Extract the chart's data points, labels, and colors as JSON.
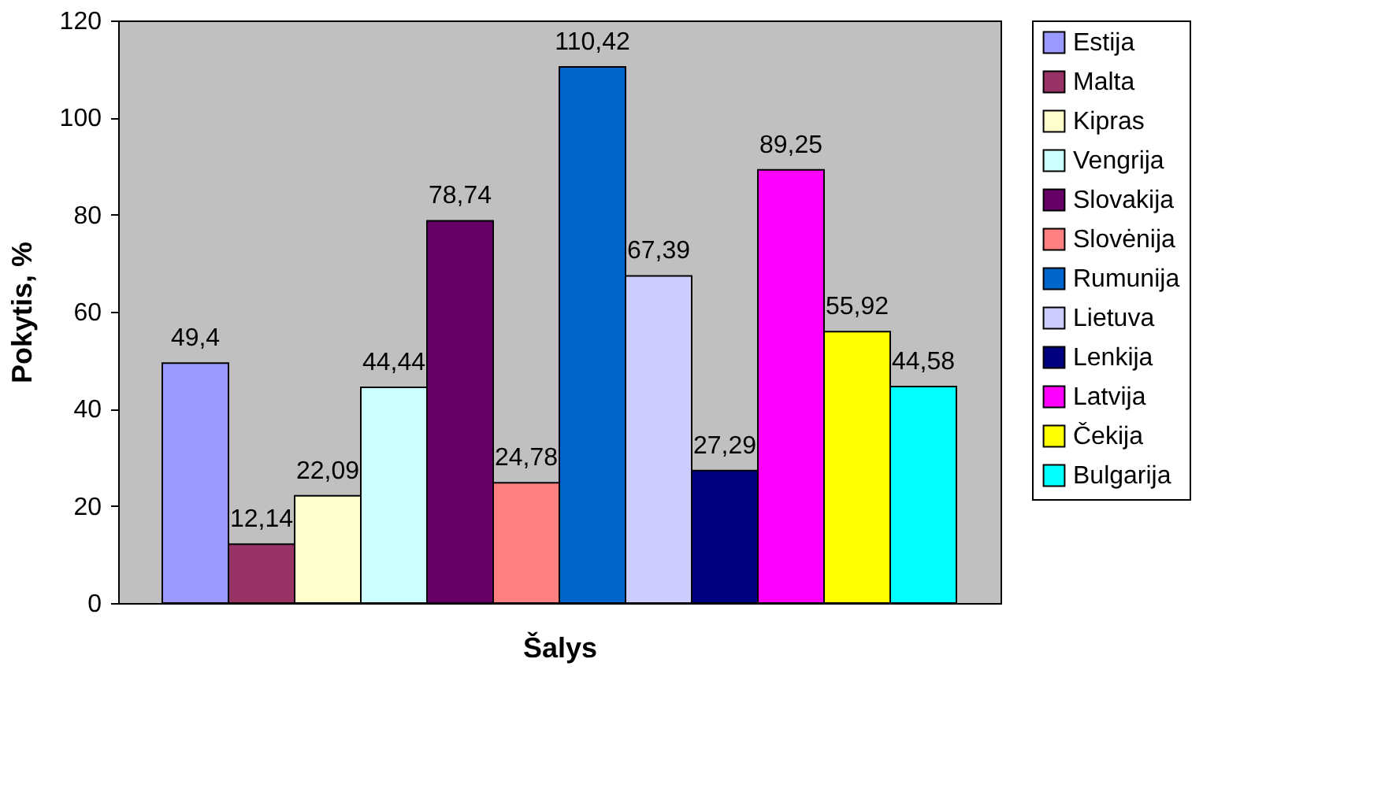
{
  "chart_data": {
    "type": "bar",
    "xlabel": "Šalys",
    "ylabel": "Pokytis, %",
    "categories": [
      null
    ],
    "ylim": [
      0,
      120
    ],
    "yticks": [
      0,
      20,
      40,
      60,
      80,
      100,
      120
    ],
    "grid": false,
    "legend": "right",
    "series": [
      {
        "name": "Estija",
        "color": "#9999ff",
        "values": [
          49.4
        ],
        "value_labels": [
          "49,4"
        ]
      },
      {
        "name": "Malta",
        "color": "#993366",
        "values": [
          12.14
        ],
        "value_labels": [
          "12,14"
        ]
      },
      {
        "name": "Kipras",
        "color": "#ffffcc",
        "values": [
          22.09
        ],
        "value_labels": [
          "22,09"
        ]
      },
      {
        "name": "Vengrija",
        "color": "#ccffff",
        "values": [
          44.44
        ],
        "value_labels": [
          "44,44"
        ]
      },
      {
        "name": "Slovakija",
        "color": "#660066",
        "values": [
          78.74
        ],
        "value_labels": [
          "78,74"
        ]
      },
      {
        "name": "Slovėnija",
        "color": "#ff8080",
        "values": [
          24.78
        ],
        "value_labels": [
          "24,78"
        ]
      },
      {
        "name": "Rumunija",
        "color": "#0066cc",
        "values": [
          110.42
        ],
        "value_labels": [
          "110,42"
        ]
      },
      {
        "name": "Lietuva",
        "color": "#ccccff",
        "values": [
          67.39
        ],
        "value_labels": [
          "67,39"
        ]
      },
      {
        "name": "Lenkija",
        "color": "#000080",
        "values": [
          27.29
        ],
        "value_labels": [
          "27,29"
        ]
      },
      {
        "name": "Latvija",
        "color": "#ff00ff",
        "values": [
          89.25
        ],
        "value_labels": [
          "89,25"
        ]
      },
      {
        "name": "Čekija",
        "color": "#ffff00",
        "values": [
          55.92
        ],
        "value_labels": [
          "55,92"
        ]
      },
      {
        "name": "Bulgarija",
        "color": "#00ffff",
        "values": [
          44.58
        ],
        "value_labels": [
          "44,58"
        ]
      }
    ]
  }
}
